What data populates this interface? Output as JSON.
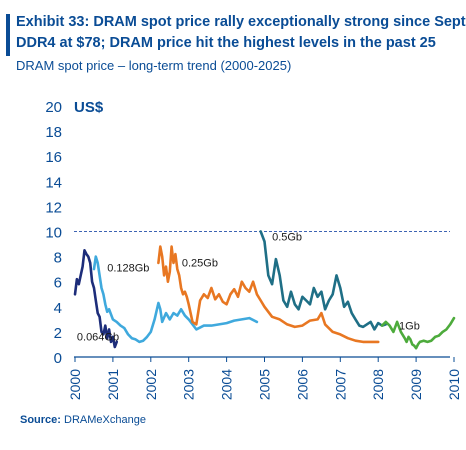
{
  "header": {
    "title_line1": "Exhibit 33: DRAM spot price rally exceptionally strong since Sept",
    "title_line2": "DDR4 at $78; DRAM price hit the highest levels in the past 25",
    "subtitle": "DRAM spot price – long-term trend (2000-2025)"
  },
  "footer": {
    "source_label": "Source:",
    "source_text": "DRAMeXchange"
  },
  "colors": {
    "text": "#0a4c95",
    "navy": "#1d2d7a",
    "sky": "#3fa9dd",
    "orange": "#e87722",
    "teal": "#1f6f86",
    "green": "#4dab3c",
    "reference": "#3e64b3"
  },
  "chart_data": {
    "type": "line",
    "title": "",
    "xlabel": "",
    "ylabel": "US$",
    "xlim": [
      2000,
      2010
    ],
    "ylim": [
      0,
      20
    ],
    "y_ticks": [
      0,
      2,
      4,
      6,
      8,
      10,
      12,
      14,
      16,
      18,
      20
    ],
    "x_ticks": [
      "2000",
      "2001",
      "2002",
      "2003",
      "2004",
      "2005",
      "2006",
      "2007",
      "2008",
      "2009",
      "2010"
    ],
    "reference_line": {
      "y": 10,
      "style": "dashed"
    },
    "grid": false,
    "series": [
      {
        "name": "0.064Gb",
        "color_key": "navy",
        "x": [
          2000.0,
          2000.05,
          2000.1,
          2000.15,
          2000.2,
          2000.25,
          2000.3,
          2000.35,
          2000.4,
          2000.45,
          2000.5,
          2000.55,
          2000.6,
          2000.65,
          2000.7,
          2000.75,
          2000.8,
          2000.85,
          2000.9,
          2000.95,
          2001.0,
          2001.05,
          2001.1
        ],
        "y": [
          5.0,
          6.2,
          5.8,
          6.5,
          7.2,
          8.5,
          8.2,
          8.0,
          7.5,
          6.0,
          5.5,
          4.5,
          3.5,
          3.2,
          2.0,
          1.8,
          2.5,
          1.5,
          2.2,
          1.2,
          1.6,
          0.8,
          1.2
        ]
      },
      {
        "name": "0.128Gb",
        "color_key": "sky",
        "x": [
          2000.5,
          2000.55,
          2000.6,
          2000.65,
          2000.7,
          2000.75,
          2000.8,
          2000.85,
          2000.9,
          2001.0,
          2001.1,
          2001.2,
          2001.3,
          2001.4,
          2001.5,
          2001.6,
          2001.7,
          2001.8,
          2001.9,
          2002.0,
          2002.1,
          2002.2,
          2002.25,
          2002.3,
          2002.4,
          2002.5,
          2002.6,
          2002.7,
          2002.8,
          2002.9,
          2003.0,
          2003.2,
          2003.4,
          2003.6,
          2003.8,
          2004.0,
          2004.2,
          2004.4,
          2004.6,
          2004.8
        ],
        "y": [
          7.0,
          8.0,
          7.5,
          6.5,
          5.5,
          5.0,
          4.2,
          3.6,
          3.8,
          3.0,
          2.8,
          2.5,
          2.3,
          1.8,
          1.5,
          1.4,
          1.2,
          1.3,
          1.6,
          2.0,
          3.0,
          4.3,
          3.8,
          2.8,
          3.5,
          3.0,
          3.5,
          3.3,
          3.8,
          3.3,
          3.0,
          2.2,
          2.5,
          2.5,
          2.6,
          2.7,
          2.9,
          3.0,
          3.1,
          2.8
        ]
      },
      {
        "name": "0.25Gb",
        "color_key": "orange",
        "x": [
          2002.2,
          2002.25,
          2002.3,
          2002.35,
          2002.4,
          2002.45,
          2002.5,
          2002.55,
          2002.6,
          2002.65,
          2002.7,
          2002.75,
          2002.8,
          2002.85,
          2002.9,
          2002.95,
          2003.0,
          2003.1,
          2003.2,
          2003.3,
          2003.4,
          2003.5,
          2003.6,
          2003.7,
          2003.8,
          2003.9,
          2004.0,
          2004.1,
          2004.2,
          2004.3,
          2004.4,
          2004.5,
          2004.6,
          2004.7,
          2004.8,
          2004.9,
          2005.0,
          2005.2,
          2005.4,
          2005.6,
          2005.8,
          2006.0,
          2006.2,
          2006.4,
          2006.5,
          2006.6,
          2006.8,
          2007.0,
          2007.2,
          2007.4,
          2007.6,
          2007.8,
          2008.0
        ],
        "y": [
          7.5,
          8.8,
          8.0,
          6.5,
          7.2,
          6.0,
          6.8,
          8.8,
          7.5,
          8.2,
          7.0,
          6.5,
          5.5,
          5.0,
          5.2,
          4.8,
          4.2,
          2.8,
          2.6,
          4.5,
          5.0,
          4.7,
          5.5,
          4.6,
          5.0,
          4.4,
          4.2,
          5.0,
          5.4,
          4.8,
          6.0,
          5.5,
          5.2,
          6.0,
          5.0,
          4.5,
          4.0,
          3.2,
          3.0,
          2.6,
          2.4,
          2.5,
          2.9,
          3.0,
          3.5,
          2.6,
          2.0,
          1.8,
          1.5,
          1.3,
          1.2,
          1.2,
          1.2
        ]
      },
      {
        "name": "0.5Gb",
        "color_key": "teal",
        "x": [
          2004.9,
          2005.0,
          2005.1,
          2005.2,
          2005.3,
          2005.4,
          2005.5,
          2005.6,
          2005.7,
          2005.8,
          2005.9,
          2006.0,
          2006.1,
          2006.2,
          2006.3,
          2006.4,
          2006.5,
          2006.6,
          2006.7,
          2006.8,
          2006.9,
          2007.0,
          2007.1,
          2007.2,
          2007.3,
          2007.4,
          2007.5,
          2007.6,
          2007.7,
          2007.8,
          2007.9,
          2008.0,
          2008.1,
          2008.2
        ],
        "y": [
          10.0,
          9.2,
          6.5,
          5.8,
          7.8,
          6.5,
          4.5,
          4.0,
          5.2,
          4.2,
          3.8,
          4.8,
          4.5,
          4.2,
          5.5,
          4.8,
          5.2,
          3.8,
          4.5,
          5.0,
          6.5,
          5.5,
          4.0,
          4.4,
          3.5,
          3.0,
          2.5,
          2.4,
          2.6,
          2.8,
          2.2,
          2.7,
          2.5,
          2.6
        ]
      },
      {
        "name": "1Gb",
        "color_key": "green",
        "x": [
          2008.1,
          2008.2,
          2008.3,
          2008.4,
          2008.5,
          2008.6,
          2008.7,
          2008.75,
          2008.8,
          2008.85,
          2008.9,
          2008.95,
          2009.0,
          2009.05,
          2009.1,
          2009.2,
          2009.3,
          2009.4,
          2009.5,
          2009.6,
          2009.7,
          2009.8,
          2009.9,
          2010.0
        ],
        "y": [
          2.5,
          2.8,
          2.5,
          2.0,
          2.8,
          2.0,
          1.5,
          1.2,
          1.6,
          1.4,
          1.0,
          0.9,
          0.7,
          1.0,
          1.2,
          1.3,
          1.2,
          1.3,
          1.6,
          1.7,
          2.0,
          2.2,
          2.6,
          3.1
        ]
      }
    ],
    "annotations": [
      {
        "text": "0.064Gb",
        "x": 2000.05,
        "y": 1.3
      },
      {
        "text": "0.128Gb",
        "x": 2000.85,
        "y": 6.8
      },
      {
        "text": "0.25Gb",
        "x": 2002.82,
        "y": 7.2
      },
      {
        "text": "0.5Gb",
        "x": 2005.2,
        "y": 9.3
      },
      {
        "text": "1Gb",
        "x": 2008.55,
        "y": 2.2
      }
    ]
  }
}
